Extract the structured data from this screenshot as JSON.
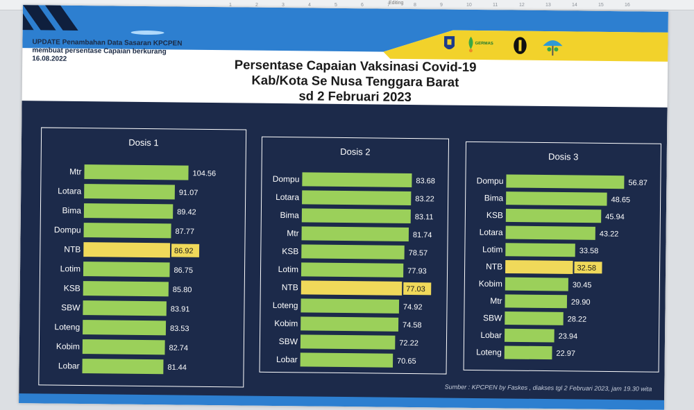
{
  "header": {
    "update_lines": [
      "UPDATE Penambahan Data Sasaran KPCPEN",
      "membuat persentase Capaian berkurang",
      "16.08.2022"
    ],
    "title_lines": [
      "Persentase Capaian Vaksinasi Covid-19",
      "Kab/Kota Se Nusa Tenggara Barat",
      "sd 2 Februari 2023"
    ],
    "logo_germas": "GERMAS"
  },
  "topbar": {
    "editing": "Editing",
    "ticks": [
      "1",
      "2",
      "3",
      "4",
      "5",
      "6",
      "7",
      "8",
      "9",
      "10",
      "11",
      "12",
      "13",
      "14",
      "15",
      "16"
    ]
  },
  "colors": {
    "bar": "#9bd05a",
    "highlight": "#f0d95a",
    "panel_bg": "#1c2a4a"
  },
  "footer": {
    "source": "Sumber : KPCPEN by Faskes , diakses  tgl  2  Februari 2023, jam 19.30 wita"
  },
  "chart_data": [
    {
      "type": "bar",
      "orientation": "horizontal",
      "title": "Dosis 1",
      "categories": [
        "Mtr",
        "Lotara",
        "Bima",
        "Dompu",
        "NTB",
        "Lotim",
        "KSB",
        "SBW",
        "Loteng",
        "Kobim",
        "Lobar"
      ],
      "values": [
        104.56,
        91.07,
        89.42,
        87.77,
        86.92,
        86.75,
        85.8,
        83.91,
        83.53,
        82.74,
        81.44
      ],
      "labels": [
        "104.56",
        "91.07",
        "89.42",
        "87.77",
        "86.92",
        "86.75",
        "85.80",
        "83.91",
        "83.53",
        "82.74",
        "81.44"
      ],
      "highlight": "NTB",
      "xlim": [
        0,
        104.56
      ]
    },
    {
      "type": "bar",
      "orientation": "horizontal",
      "title": "Dosis 2",
      "categories": [
        "Dompu",
        "Lotara",
        "Bima",
        "Mtr",
        "KSB",
        "Lotim",
        "NTB",
        "Loteng",
        "Kobim",
        "SBW",
        "Lobar"
      ],
      "values": [
        83.68,
        83.22,
        83.11,
        81.74,
        78.57,
        77.93,
        77.03,
        74.92,
        74.58,
        72.22,
        70.65
      ],
      "labels": [
        "83.68",
        "83.22",
        "83.11",
        "81.74",
        "78.57",
        "77.93",
        "77.03",
        "74.92",
        "74.58",
        "72.22",
        "70.65"
      ],
      "highlight": "NTB",
      "xlim": [
        0,
        83.68
      ]
    },
    {
      "type": "bar",
      "orientation": "horizontal",
      "title": "Dosis 3",
      "categories": [
        "Dompu",
        "Bima",
        "KSB",
        "Lotara",
        "Lotim",
        "NTB",
        "Kobim",
        "Mtr",
        "SBW",
        "Lobar",
        "Loteng"
      ],
      "values": [
        56.87,
        48.65,
        45.94,
        43.22,
        33.58,
        32.58,
        30.45,
        29.9,
        28.22,
        23.94,
        22.97
      ],
      "labels": [
        "56.87",
        "48.65",
        "45.94",
        "43.22",
        "33.58",
        "32.58",
        "30.45",
        "29.90",
        "28.22",
        "23.94",
        "22.97"
      ],
      "highlight": "NTB",
      "xlim": [
        0,
        56.87
      ]
    }
  ]
}
